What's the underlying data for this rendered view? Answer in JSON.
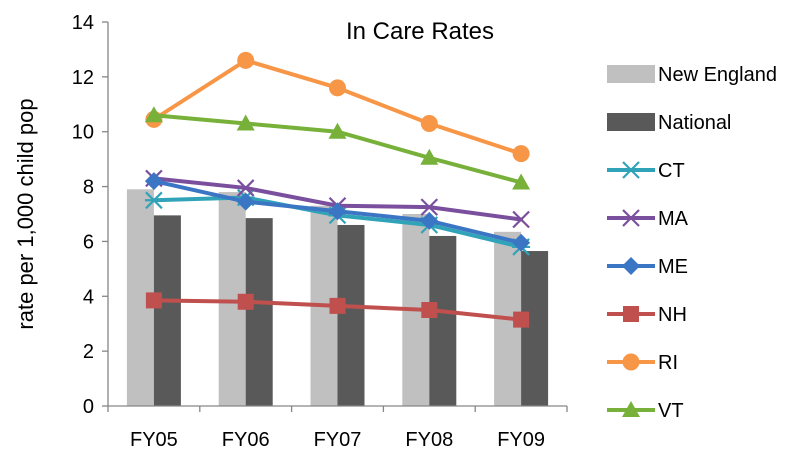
{
  "chart_data": {
    "type": "bar+line",
    "title": "In Care Rates",
    "ylabel": "rate per 1,000 child pop",
    "xlabel": "",
    "categories": [
      "FY05",
      "FY06",
      "FY07",
      "FY08",
      "FY09"
    ],
    "ylim": [
      0,
      14
    ],
    "yticks": [
      0,
      2,
      4,
      6,
      8,
      10,
      12,
      14
    ],
    "grid": false,
    "legend_position": "right",
    "bar_series": [
      {
        "name": "New England",
        "color": "#c0c0c0",
        "values": [
          7.9,
          7.8,
          7.3,
          7.0,
          6.35
        ]
      },
      {
        "name": "National",
        "color": "#595959",
        "values": [
          6.95,
          6.85,
          6.6,
          6.2,
          5.65
        ]
      }
    ],
    "line_series": [
      {
        "name": "CT",
        "color": "#31a3b8",
        "marker": "asterisk",
        "values": [
          7.5,
          7.6,
          6.95,
          6.6,
          5.8
        ]
      },
      {
        "name": "MA",
        "color": "#7a4f9d",
        "marker": "x",
        "values": [
          8.3,
          7.95,
          7.3,
          7.25,
          6.8
        ]
      },
      {
        "name": "ME",
        "color": "#3a76c4",
        "marker": "diamond",
        "values": [
          8.2,
          7.45,
          7.1,
          6.75,
          5.95
        ]
      },
      {
        "name": "NH",
        "color": "#c0504d",
        "marker": "square",
        "values": [
          3.85,
          3.8,
          3.65,
          3.5,
          3.15
        ]
      },
      {
        "name": "RI",
        "color": "#f79646",
        "marker": "circle",
        "values": [
          10.45,
          12.6,
          11.6,
          10.3,
          9.2
        ]
      },
      {
        "name": "VT",
        "color": "#77b13a",
        "marker": "triangle",
        "values": [
          10.6,
          10.3,
          10.0,
          9.05,
          8.15
        ]
      }
    ]
  }
}
